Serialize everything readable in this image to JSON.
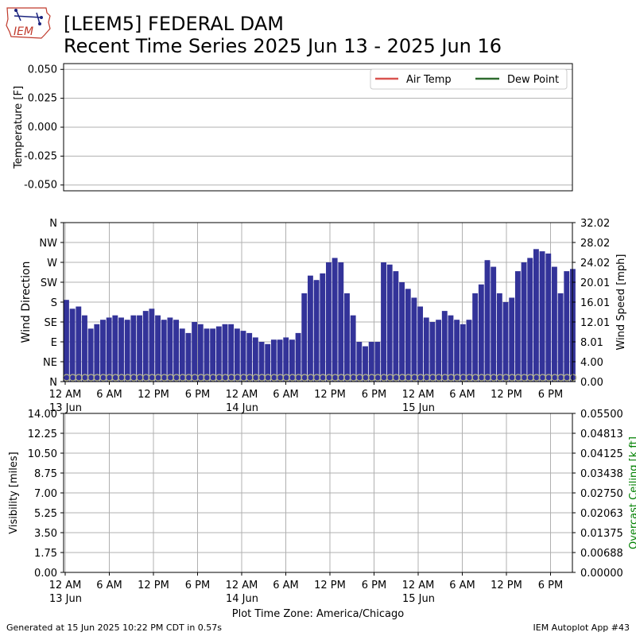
{
  "header": {
    "logo_text": "IEM",
    "title_line1": "[LEEM5] FEDERAL DAM",
    "title_line2": "Recent Time Series 2025 Jun 13 - 2025 Jun 16"
  },
  "footer": {
    "generated": "Generated at 15 Jun 2025 10:22 PM CDT in 0.57s",
    "app": "IEM Autoplot App #43"
  },
  "colors": {
    "air_temp": "#d9534f",
    "dew_point": "#2e6b2e",
    "wind_bar": "#333399",
    "gust_marker": "#b8b887",
    "ceiling_axis": "#008000",
    "grid": "#b0b0b0"
  },
  "chart_data": [
    {
      "type": "line",
      "ylabel": "Temperature [F]",
      "ylim": [
        -0.055,
        0.055
      ],
      "y_ticks": [
        "0.050",
        "0.025",
        "0.000",
        "-0.025",
        "-0.050"
      ],
      "y_tick_values": [
        0.05,
        0.025,
        0.0,
        -0.025,
        -0.05
      ],
      "grid": true,
      "legend_placement": "top-right",
      "series": [
        {
          "name": "Air Temp",
          "color": "#d9534f",
          "values": []
        },
        {
          "name": "Dew Point",
          "color": "#2e6b2e",
          "values": []
        }
      ]
    },
    {
      "type": "bar",
      "ylabel": "Wind Direction",
      "y_ticks": [
        "N",
        "NE",
        "E",
        "SE",
        "S",
        "SW",
        "W",
        "NW",
        "N"
      ],
      "y2label": "Wind Speed [mph]",
      "y2_ticks": [
        "32.02",
        "28.02",
        "24.02",
        "20.01",
        "16.01",
        "12.01",
        "8.01",
        "4.00",
        "0.00"
      ],
      "y2lim": [
        0,
        32.02
      ],
      "grid": true,
      "x_ticks": [
        {
          "line1": "12 AM",
          "line2": "13 Jun"
        },
        {
          "line1": "6 AM",
          "line2": ""
        },
        {
          "line1": "12 PM",
          "line2": ""
        },
        {
          "line1": "6 PM",
          "line2": ""
        },
        {
          "line1": "12 AM",
          "line2": "14 Jun"
        },
        {
          "line1": "6 AM",
          "line2": ""
        },
        {
          "line1": "12 PM",
          "line2": ""
        },
        {
          "line1": "6 PM",
          "line2": ""
        },
        {
          "line1": "12 AM",
          "line2": "15 Jun"
        },
        {
          "line1": "6 AM",
          "line2": ""
        },
        {
          "line1": "12 PM",
          "line2": ""
        },
        {
          "line1": "6 PM",
          "line2": ""
        }
      ],
      "wind_direction_deg_hourly": [
        185,
        165,
        170,
        150,
        120,
        130,
        140,
        145,
        150,
        145,
        140,
        150,
        150,
        160,
        165,
        150,
        140,
        145,
        140,
        120,
        110,
        135,
        130,
        120,
        120,
        125,
        130,
        130,
        120,
        115,
        110,
        100,
        90,
        85,
        95,
        95,
        100,
        95,
        110,
        200,
        240,
        230,
        245,
        270,
        280,
        270,
        200,
        150,
        90,
        80,
        90,
        90,
        270,
        265,
        250,
        225,
        210,
        190,
        170,
        145,
        135,
        140,
        160,
        150,
        140,
        130,
        140,
        200,
        220,
        275,
        260,
        200,
        180,
        190,
        250,
        270,
        280,
        300,
        295,
        290,
        260,
        200,
        250,
        255
      ]
    },
    {
      "type": "line",
      "ylabel": "Visibility [miles]",
      "ylim": [
        0,
        14
      ],
      "y_ticks": [
        "14.00",
        "12.25",
        "10.50",
        "8.75",
        "7.00",
        "5.25",
        "3.50",
        "1.75",
        "0.00"
      ],
      "y2label": "Overcast Ceiling [k ft]",
      "y2_ticks": [
        "0.05500",
        "0.04813",
        "0.04125",
        "0.03438",
        "0.02750",
        "0.02063",
        "0.01375",
        "0.00688",
        "0.00000"
      ],
      "y2lim": [
        0,
        0.055
      ],
      "grid": true,
      "x_ticks": [
        {
          "line1": "12 AM",
          "line2": "13 Jun"
        },
        {
          "line1": "6 AM",
          "line2": ""
        },
        {
          "line1": "12 PM",
          "line2": ""
        },
        {
          "line1": "6 PM",
          "line2": ""
        },
        {
          "line1": "12 AM",
          "line2": "14 Jun"
        },
        {
          "line1": "6 AM",
          "line2": ""
        },
        {
          "line1": "12 PM",
          "line2": ""
        },
        {
          "line1": "6 PM",
          "line2": ""
        },
        {
          "line1": "12 AM",
          "line2": "15 Jun"
        },
        {
          "line1": "6 AM",
          "line2": ""
        },
        {
          "line1": "12 PM",
          "line2": ""
        },
        {
          "line1": "6 PM",
          "line2": ""
        }
      ],
      "xlabel": "Plot Time Zone: America/Chicago",
      "series": []
    }
  ]
}
